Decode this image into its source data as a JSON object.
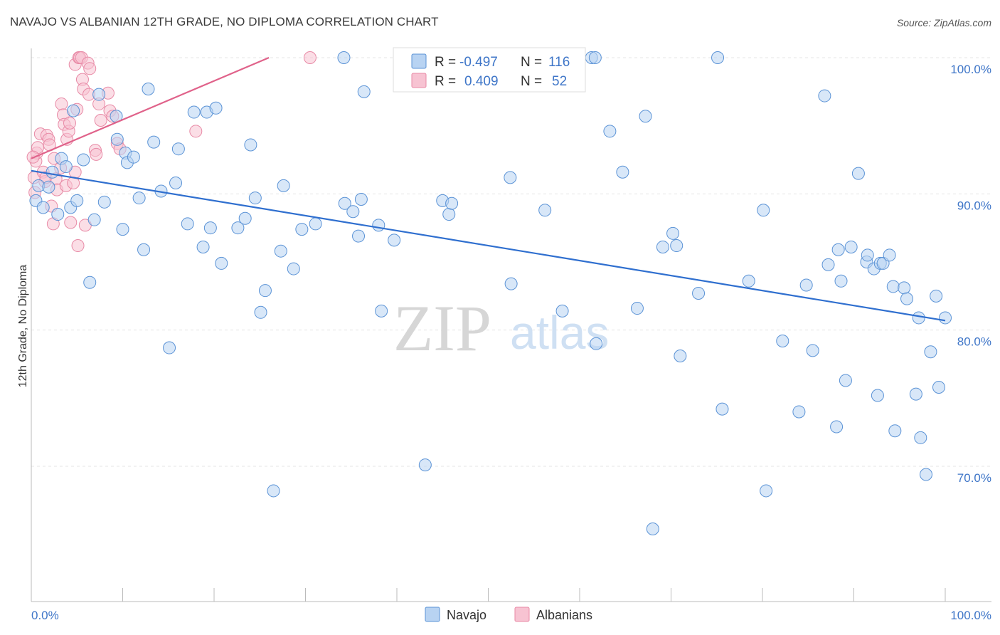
{
  "title": "NAVAJO VS ALBANIAN 12TH GRADE, NO DIPLOMA CORRELATION CHART",
  "source": "Source: ZipAtlas.com",
  "watermark": {
    "zip": "ZIP",
    "atlas": "atlas"
  },
  "colors": {
    "navajo_fill": "#b8d3f2",
    "navajo_stroke": "#5b93d6",
    "navajo_line": "#2f6fcf",
    "albanian_fill": "#f7c3d2",
    "albanian_stroke": "#e88aa6",
    "albanian_line": "#e0628a",
    "tick_text": "#3f76c8",
    "grid": "#e4e4e4"
  },
  "legend": {
    "rows": [
      {
        "r_label": "R =",
        "r_value": "-0.497",
        "n_label": "N =",
        "n_value": "116"
      },
      {
        "r_label": "R =",
        "r_value": "0.409",
        "n_label": "N =",
        "n_value": "52"
      }
    ]
  },
  "bottom_legend": [
    "Navajo",
    "Albanians"
  ],
  "chart_data": {
    "type": "scatter",
    "xlabel": "",
    "ylabel": "12th Grade, No Diploma",
    "xlim": [
      0,
      100
    ],
    "ylim": [
      60,
      102
    ],
    "x_tick_labels": [
      "0.0%",
      "100.0%"
    ],
    "y_ticks": [
      70,
      80,
      90,
      100
    ],
    "y_tick_labels": [
      "70.0%",
      "80.0%",
      "90.0%",
      "100.0%"
    ],
    "grid": true,
    "legend_position": "top-center",
    "series": [
      {
        "name": "Navajo",
        "R": -0.497,
        "N": 116,
        "trend": {
          "x": [
            0,
            100
          ],
          "y": [
            91.7,
            80.7
          ]
        },
        "points": [
          [
            0.5,
            89.5
          ],
          [
            0.8,
            90.6
          ],
          [
            1.3,
            89.0
          ],
          [
            1.9,
            90.5
          ],
          [
            2.3,
            91.6
          ],
          [
            2.9,
            88.5
          ],
          [
            3.3,
            92.6
          ],
          [
            3.8,
            92.0
          ],
          [
            4.3,
            89.0
          ],
          [
            5.0,
            89.5
          ],
          [
            4.6,
            96.1
          ],
          [
            5.7,
            92.5
          ],
          [
            6.4,
            83.5
          ],
          [
            6.9,
            88.1
          ],
          [
            7.4,
            97.3
          ],
          [
            8.0,
            89.4
          ],
          [
            9.3,
            95.7
          ],
          [
            9.4,
            94.0
          ],
          [
            10.0,
            87.4
          ],
          [
            10.3,
            93.0
          ],
          [
            10.5,
            92.3
          ],
          [
            11.2,
            92.7
          ],
          [
            11.8,
            89.7
          ],
          [
            12.3,
            85.9
          ],
          [
            12.8,
            97.7
          ],
          [
            13.4,
            93.8
          ],
          [
            14.2,
            90.2
          ],
          [
            15.1,
            78.7
          ],
          [
            15.8,
            90.8
          ],
          [
            16.1,
            93.3
          ],
          [
            17.1,
            87.8
          ],
          [
            17.8,
            96.0
          ],
          [
            18.8,
            86.1
          ],
          [
            19.2,
            96.0
          ],
          [
            19.6,
            87.5
          ],
          [
            20.2,
            96.3
          ],
          [
            20.8,
            84.9
          ],
          [
            22.6,
            87.5
          ],
          [
            23.4,
            88.2
          ],
          [
            24.0,
            93.6
          ],
          [
            24.5,
            89.7
          ],
          [
            25.1,
            81.3
          ],
          [
            25.6,
            82.9
          ],
          [
            26.5,
            68.2
          ],
          [
            27.3,
            85.8
          ],
          [
            27.6,
            90.6
          ],
          [
            28.7,
            84.5
          ],
          [
            29.6,
            87.4
          ],
          [
            31.1,
            87.8
          ],
          [
            34.2,
            100.0
          ],
          [
            34.3,
            89.3
          ],
          [
            35.2,
            88.7
          ],
          [
            35.8,
            86.9
          ],
          [
            36.1,
            89.6
          ],
          [
            36.4,
            97.5
          ],
          [
            38.0,
            87.7
          ],
          [
            38.3,
            81.4
          ],
          [
            39.7,
            86.6
          ],
          [
            43.1,
            70.1
          ],
          [
            45.0,
            89.5
          ],
          [
            45.7,
            88.5
          ],
          [
            46.0,
            89.3
          ],
          [
            52.4,
            91.2
          ],
          [
            52.5,
            83.4
          ],
          [
            54.1,
            100.0
          ],
          [
            56.2,
            88.8
          ],
          [
            58.1,
            81.4
          ],
          [
            61.3,
            100.0
          ],
          [
            61.7,
            100.0
          ],
          [
            61.8,
            79.0
          ],
          [
            63.3,
            94.6
          ],
          [
            64.7,
            91.6
          ],
          [
            66.3,
            81.6
          ],
          [
            67.2,
            95.7
          ],
          [
            68.0,
            65.4
          ],
          [
            69.1,
            86.1
          ],
          [
            70.2,
            87.1
          ],
          [
            70.6,
            86.2
          ],
          [
            71.0,
            78.1
          ],
          [
            73.0,
            82.7
          ],
          [
            75.1,
            100.0
          ],
          [
            75.6,
            74.2
          ],
          [
            78.5,
            83.6
          ],
          [
            80.1,
            88.8
          ],
          [
            80.4,
            68.2
          ],
          [
            82.2,
            79.2
          ],
          [
            84.0,
            74.0
          ],
          [
            84.8,
            83.3
          ],
          [
            85.5,
            78.5
          ],
          [
            86.8,
            97.2
          ],
          [
            87.2,
            84.8
          ],
          [
            88.1,
            72.9
          ],
          [
            88.3,
            85.9
          ],
          [
            88.6,
            83.6
          ],
          [
            89.1,
            76.3
          ],
          [
            89.7,
            86.1
          ],
          [
            90.5,
            91.5
          ],
          [
            91.4,
            85.0
          ],
          [
            91.5,
            85.5
          ],
          [
            92.2,
            84.5
          ],
          [
            92.6,
            75.2
          ],
          [
            92.9,
            84.9
          ],
          [
            93.2,
            84.9
          ],
          [
            93.9,
            85.5
          ],
          [
            94.3,
            83.2
          ],
          [
            94.5,
            72.6
          ],
          [
            95.5,
            83.1
          ],
          [
            95.8,
            82.3
          ],
          [
            96.8,
            75.3
          ],
          [
            97.1,
            80.9
          ],
          [
            97.3,
            72.1
          ],
          [
            97.9,
            69.4
          ],
          [
            98.4,
            78.4
          ],
          [
            99.0,
            82.5
          ],
          [
            99.3,
            75.8
          ],
          [
            100.0,
            80.9
          ]
        ]
      },
      {
        "name": "Albanians",
        "R": 0.409,
        "N": 52,
        "trend": {
          "x": [
            0,
            26
          ],
          "y": [
            92.6,
            100.0
          ]
        },
        "points": [
          [
            0.3,
            91.2
          ],
          [
            0.5,
            92.4
          ],
          [
            0.6,
            93.0
          ],
          [
            0.7,
            93.4
          ],
          [
            1.0,
            94.4
          ],
          [
            1.3,
            91.6
          ],
          [
            1.5,
            90.9
          ],
          [
            1.6,
            91.2
          ],
          [
            1.7,
            94.3
          ],
          [
            1.9,
            94.0
          ],
          [
            2.2,
            89.1
          ],
          [
            2.4,
            87.8
          ],
          [
            2.5,
            92.6
          ],
          [
            2.7,
            91.1
          ],
          [
            2.8,
            90.3
          ],
          [
            3.2,
            91.9
          ],
          [
            3.3,
            96.6
          ],
          [
            3.5,
            95.8
          ],
          [
            3.6,
            95.1
          ],
          [
            3.8,
            90.6
          ],
          [
            3.9,
            94.0
          ],
          [
            4.1,
            94.6
          ],
          [
            4.2,
            95.2
          ],
          [
            4.3,
            87.9
          ],
          [
            4.6,
            90.8
          ],
          [
            4.8,
            91.6
          ],
          [
            4.8,
            99.5
          ],
          [
            5.0,
            96.2
          ],
          [
            5.1,
            86.2
          ],
          [
            5.2,
            100.0
          ],
          [
            5.3,
            100.0
          ],
          [
            5.5,
            100.0
          ],
          [
            5.6,
            98.4
          ],
          [
            5.7,
            97.7
          ],
          [
            5.9,
            87.7
          ],
          [
            6.2,
            99.6
          ],
          [
            6.3,
            97.3
          ],
          [
            6.4,
            99.2
          ],
          [
            7.0,
            93.2
          ],
          [
            7.1,
            92.9
          ],
          [
            7.4,
            96.6
          ],
          [
            7.6,
            95.4
          ],
          [
            8.4,
            97.4
          ],
          [
            8.6,
            96.1
          ],
          [
            8.9,
            95.7
          ],
          [
            9.4,
            93.7
          ],
          [
            9.7,
            93.3
          ],
          [
            18.0,
            94.6
          ],
          [
            30.5,
            100.0
          ],
          [
            0.2,
            92.7
          ],
          [
            0.4,
            90.1
          ],
          [
            2.0,
            93.6
          ]
        ]
      }
    ]
  }
}
